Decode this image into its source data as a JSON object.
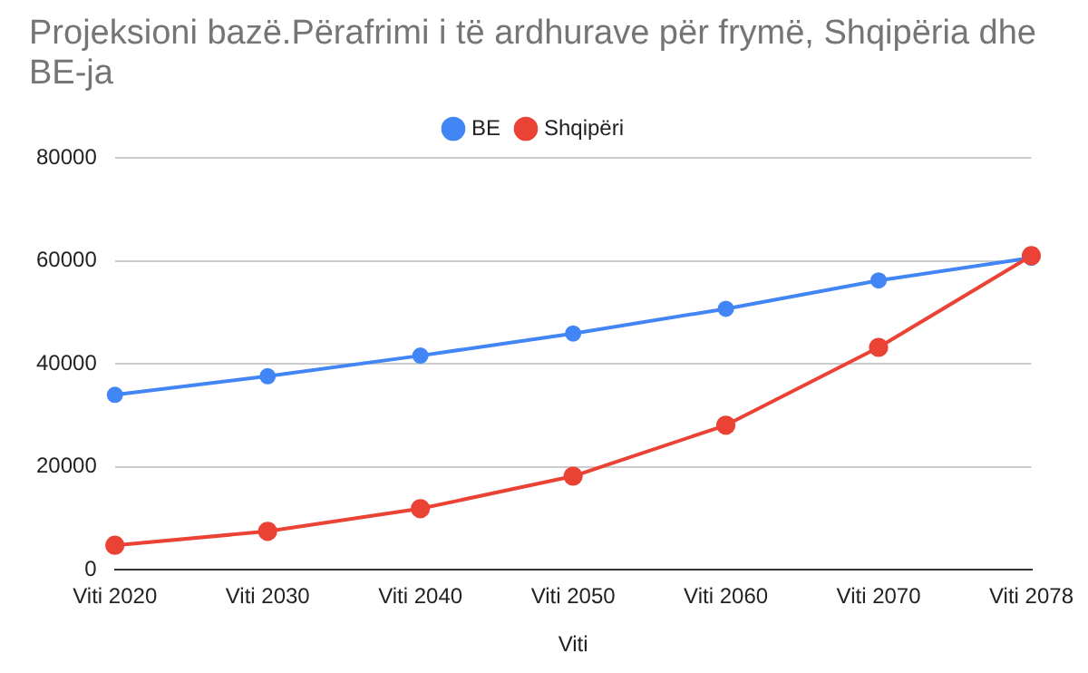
{
  "chart_data": {
    "type": "line",
    "title": "Projeksioni bazë.Përafrimi i të ardhurave për frymë, Shqipëria dhe BE-ja",
    "xlabel": "Viti",
    "categories": [
      "Viti 2020",
      "Viti 2030",
      "Viti 2040",
      "Viti 2050",
      "Viti 2060",
      "Viti 2070",
      "Viti 2078"
    ],
    "series": [
      {
        "name": "BE",
        "color": "#4285f4",
        "values": [
          34000,
          37600,
          41600,
          45900,
          50700,
          56200,
          60600
        ]
      },
      {
        "name": "Shqipëri",
        "color": "#ea4335",
        "values": [
          4800,
          7500,
          11900,
          18200,
          28100,
          43200,
          61000
        ]
      }
    ],
    "ylim": [
      0,
      80000
    ],
    "yticks": [
      0,
      20000,
      40000,
      60000,
      80000
    ],
    "grid": "y",
    "legend": "top",
    "marker": "circle",
    "line_style": "solid"
  }
}
